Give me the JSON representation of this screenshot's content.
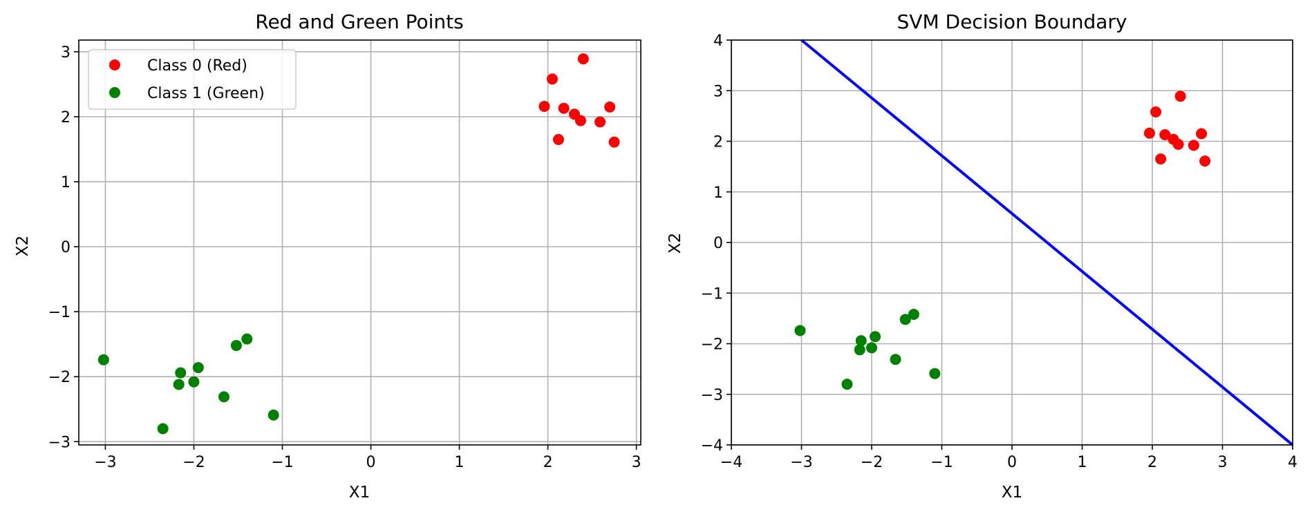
{
  "chart_data": [
    {
      "type": "scatter",
      "title": "Red and Green Points",
      "xlabel": "X1",
      "ylabel": "X2",
      "xlim": [
        -3.3,
        3.05
      ],
      "ylim": [
        -3.05,
        3.18
      ],
      "xticks": [
        -3,
        -2,
        -1,
        0,
        1,
        2,
        3
      ],
      "yticks": [
        -3,
        -2,
        -1,
        0,
        1,
        2,
        3
      ],
      "grid": true,
      "legend": "top-left",
      "series": [
        {
          "name": "Class 0 (Red)",
          "color": "#ff0000",
          "points": [
            [
              1.96,
              2.16
            ],
            [
              2.05,
              2.58
            ],
            [
              2.12,
              1.65
            ],
            [
              2.18,
              2.13
            ],
            [
              2.3,
              2.04
            ],
            [
              2.37,
              1.94
            ],
            [
              2.4,
              2.89
            ],
            [
              2.59,
              1.92
            ],
            [
              2.7,
              2.15
            ],
            [
              2.75,
              1.61
            ]
          ]
        },
        {
          "name": "Class 1 (Green)",
          "color": "#008000",
          "points": [
            [
              -3.02,
              -1.74
            ],
            [
              -2.35,
              -2.8
            ],
            [
              -2.15,
              -1.94
            ],
            [
              -2.17,
              -2.12
            ],
            [
              -2.0,
              -2.08
            ],
            [
              -1.95,
              -1.86
            ],
            [
              -1.66,
              -2.31
            ],
            [
              -1.52,
              -1.52
            ],
            [
              -1.4,
              -1.42
            ],
            [
              -1.1,
              -2.59
            ]
          ]
        }
      ]
    },
    {
      "type": "scatter",
      "title": "SVM Decision Boundary",
      "xlabel": "X1",
      "ylabel": "X2",
      "xlim": [
        -4,
        4
      ],
      "ylim": [
        -4,
        4
      ],
      "xticks": [
        -4,
        -3,
        -2,
        -1,
        0,
        1,
        2,
        3,
        4
      ],
      "yticks": [
        -4,
        -3,
        -2,
        -1,
        0,
        1,
        2,
        3,
        4
      ],
      "grid": true,
      "series": [
        {
          "color": "#ff0000",
          "points": [
            [
              1.96,
              2.16
            ],
            [
              2.05,
              2.58
            ],
            [
              2.12,
              1.65
            ],
            [
              2.18,
              2.13
            ],
            [
              2.3,
              2.04
            ],
            [
              2.37,
              1.94
            ],
            [
              2.4,
              2.89
            ],
            [
              2.59,
              1.92
            ],
            [
              2.7,
              2.15
            ],
            [
              2.75,
              1.61
            ]
          ]
        },
        {
          "color": "#008000",
          "points": [
            [
              -3.02,
              -1.74
            ],
            [
              -2.35,
              -2.8
            ],
            [
              -2.15,
              -1.94
            ],
            [
              -2.17,
              -2.12
            ],
            [
              -2.0,
              -2.08
            ],
            [
              -1.95,
              -1.86
            ],
            [
              -1.66,
              -2.31
            ],
            [
              -1.52,
              -1.52
            ],
            [
              -1.4,
              -1.42
            ],
            [
              -1.1,
              -2.59
            ]
          ]
        }
      ],
      "decision_boundary": {
        "color": "#0000ff",
        "points": [
          [
            -3.0,
            4.0
          ],
          [
            4.0,
            -4.0
          ]
        ]
      }
    }
  ]
}
